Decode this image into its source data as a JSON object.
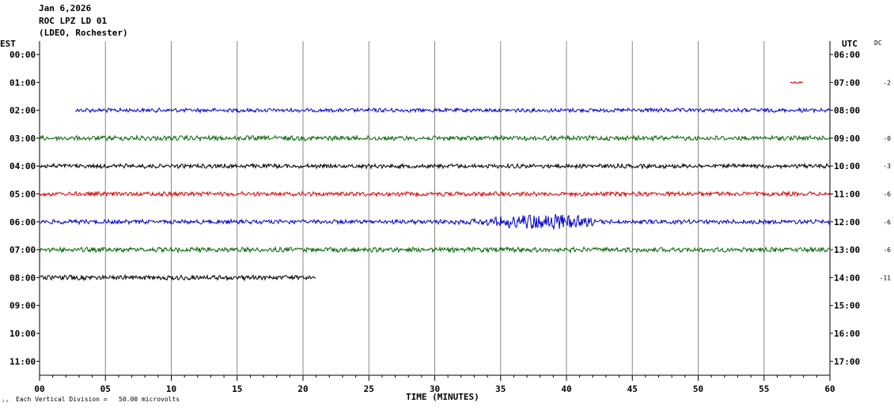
{
  "header": {
    "date": "Jan 6,2026",
    "station": "ROC LPZ LD 01",
    "network": "(LDEO, Rochester)"
  },
  "left_zone": "EST",
  "right_zone": "UTC",
  "dc_label": "DC",
  "footer": {
    "note_mark": "ᵢₛ",
    "division_note": "Each Vertical Division =   50.00 microvolts"
  },
  "chart_data": {
    "type": "line",
    "xlabel": "TIME (MINUTES)",
    "xlim": [
      0,
      60
    ],
    "x_ticks": [
      "00",
      "05",
      "10",
      "15",
      "20",
      "25",
      "30",
      "35",
      "40",
      "45",
      "50",
      "55",
      "60"
    ],
    "rows_est": [
      "00:00",
      "01:00",
      "02:00",
      "03:00",
      "04:00",
      "05:00",
      "06:00",
      "07:00",
      "08:00",
      "09:00",
      "10:00",
      "11:00"
    ],
    "rows_utc": [
      "06:00",
      "07:00",
      "08:00",
      "09:00",
      "10:00",
      "11:00",
      "12:00",
      "13:00",
      "14:00",
      "15:00",
      "16:00",
      "17:00"
    ],
    "series": [
      {
        "row": 1,
        "start": 57.0,
        "end": 58.0,
        "color": "#dd0000",
        "dc": "-2",
        "amp": 1.2,
        "event": null
      },
      {
        "row": 2,
        "start": 2.7,
        "end": 60,
        "color": "#0000cc",
        "dc": "",
        "amp": 2.2,
        "event": null
      },
      {
        "row": 3,
        "start": 0,
        "end": 60,
        "color": "#006600",
        "dc": "-0",
        "amp": 2.6,
        "event": null
      },
      {
        "row": 4,
        "start": 0,
        "end": 60,
        "color": "#000000",
        "dc": "-3",
        "amp": 2.4,
        "event": null
      },
      {
        "row": 5,
        "start": 0,
        "end": 60,
        "color": "#dd0000",
        "dc": "-6",
        "amp": 2.4,
        "event": null
      },
      {
        "row": 6,
        "start": 0,
        "end": 60,
        "color": "#0000cc",
        "dc": "-6",
        "amp": 2.4,
        "event": {
          "start": 30.5,
          "peak": 38.5,
          "end": 42.0,
          "amp": 8.5
        }
      },
      {
        "row": 7,
        "start": 0,
        "end": 60,
        "color": "#006600",
        "dc": "-6",
        "amp": 2.6,
        "event": null
      },
      {
        "row": 8,
        "start": 0,
        "end": 21.0,
        "color": "#000000",
        "dc": "-11",
        "amp": 2.6,
        "event": null
      }
    ]
  }
}
